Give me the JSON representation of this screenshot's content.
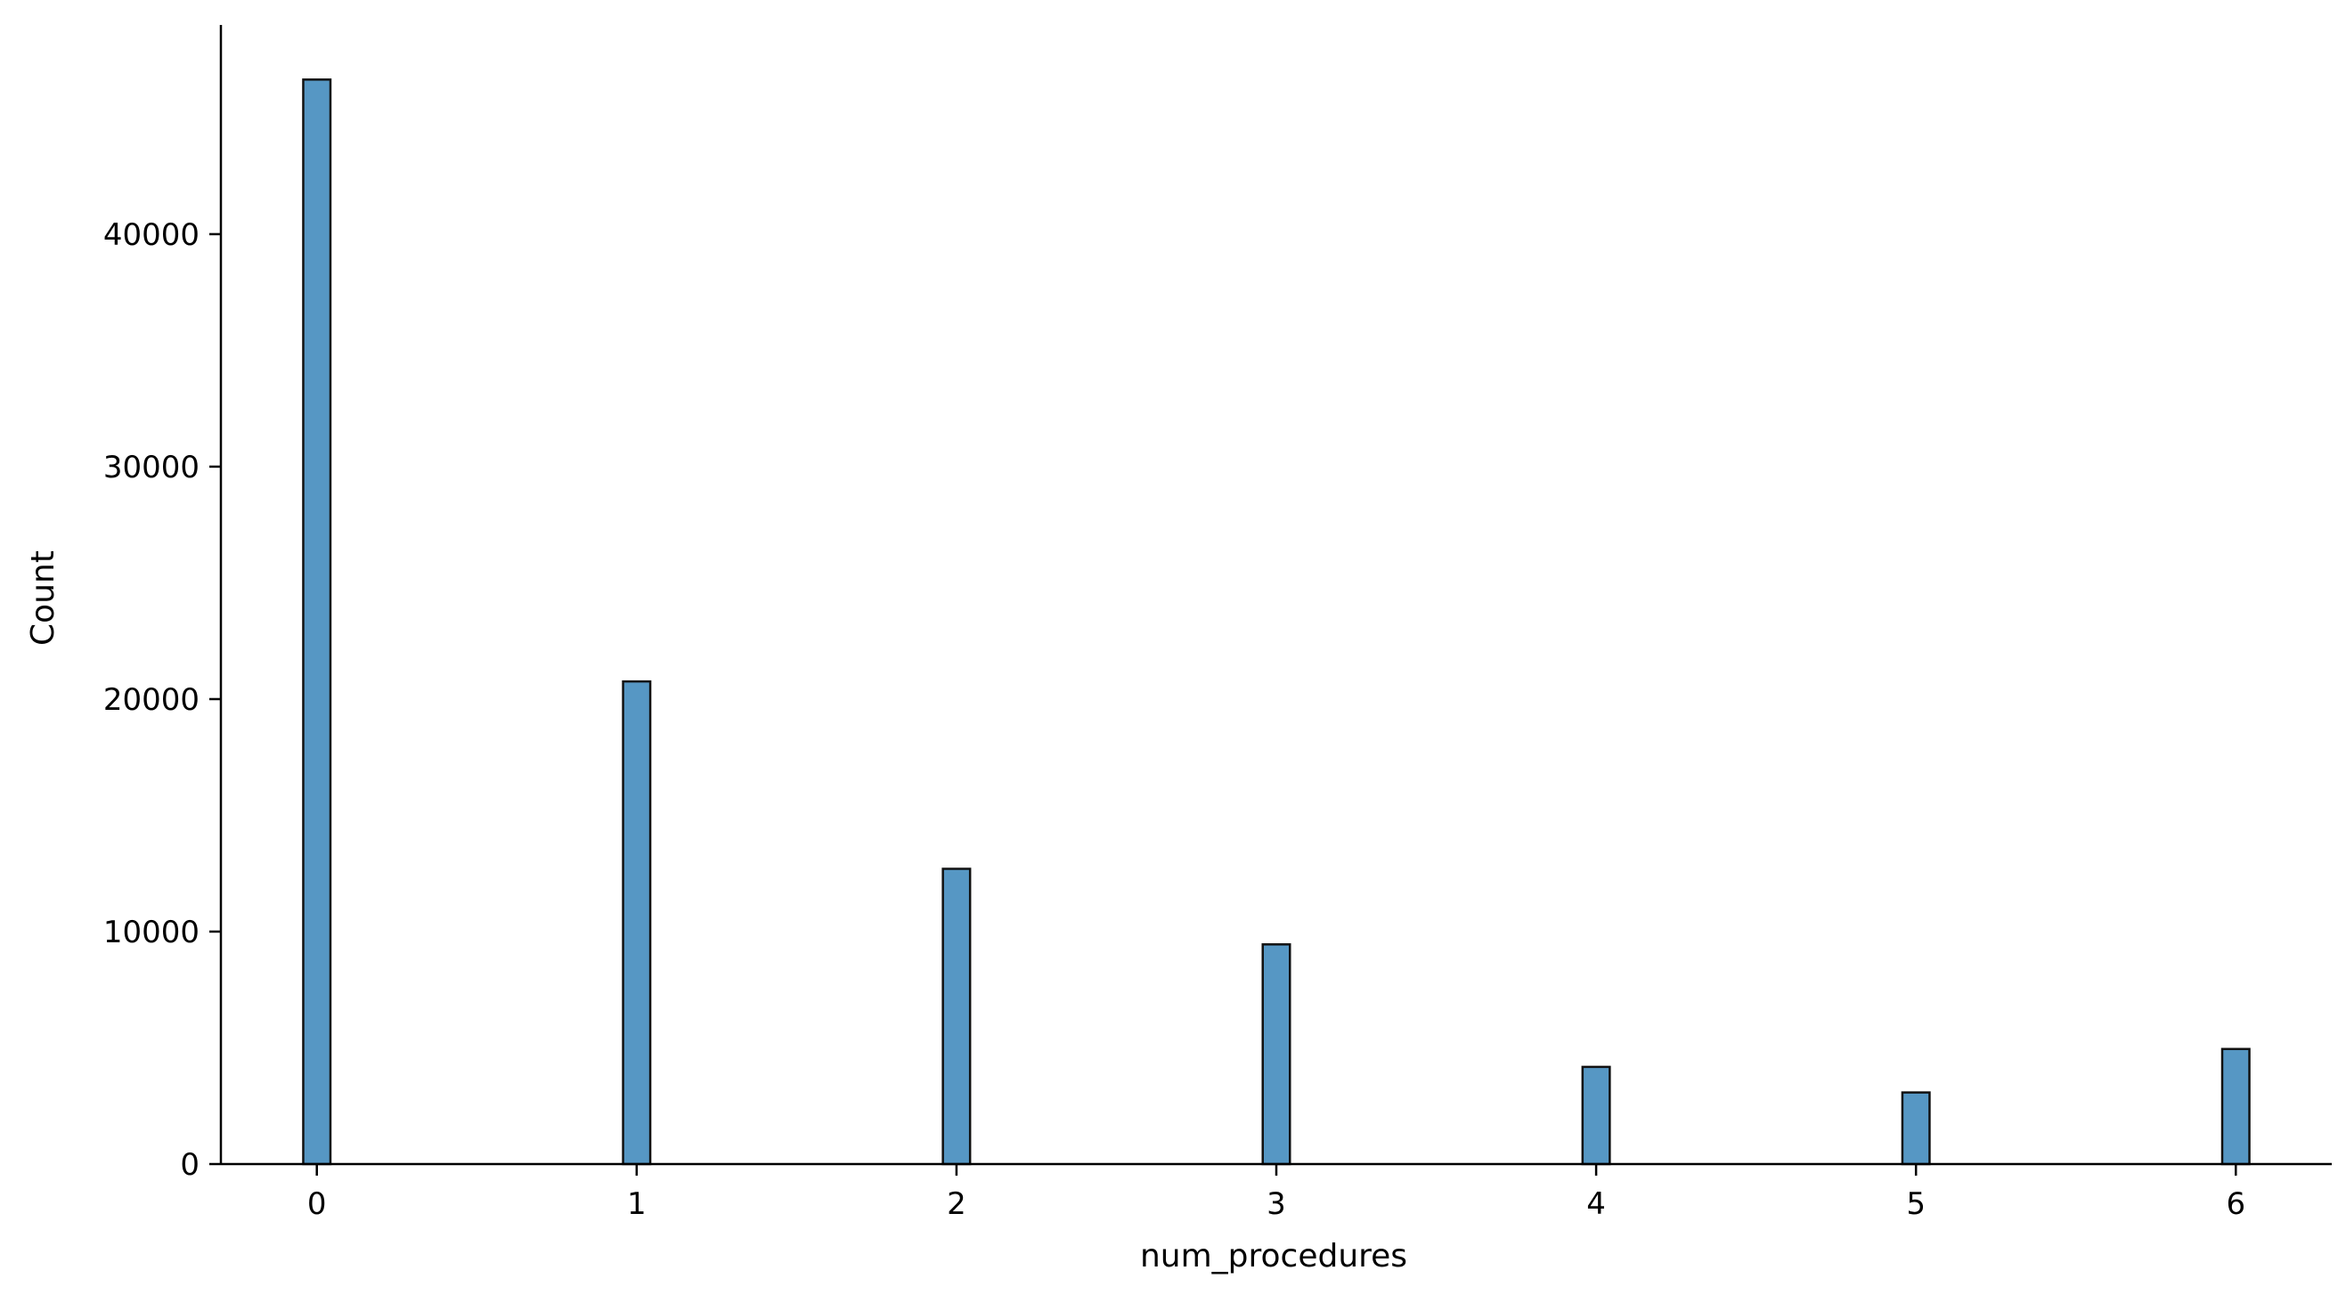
{
  "chart_data": {
    "type": "bar",
    "title": "",
    "xlabel": "num_procedures",
    "ylabel": "Count",
    "x": [
      0,
      1,
      2,
      3,
      4,
      5,
      6
    ],
    "values": [
      46650,
      20760,
      12700,
      9450,
      4180,
      3080,
      4950
    ],
    "xlim": [
      -0.3,
      6.3
    ],
    "ylim": [
      0,
      49000
    ],
    "xticks": [
      0,
      1,
      2,
      3,
      4,
      5,
      6
    ],
    "yticks": [
      0,
      10000,
      20000,
      30000,
      40000
    ],
    "xtick_labels": [
      "0",
      "1",
      "2",
      "3",
      "4",
      "5",
      "6"
    ],
    "ytick_labels": [
      "0",
      "10000",
      "20000",
      "30000",
      "40000"
    ],
    "bar_width": 0.085,
    "grid": false,
    "legend": "none",
    "colors": {
      "bar_fill": "#5697c4",
      "bar_edge": "#111111",
      "axis": "#000000"
    }
  }
}
